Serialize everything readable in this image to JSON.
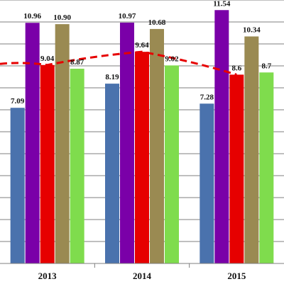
{
  "chart_data": {
    "type": "bar",
    "categories": [
      "2013",
      "2014",
      "2015"
    ],
    "series": [
      {
        "values": [
          7.09,
          8.19,
          7.28
        ],
        "color": "#4a72ad"
      },
      {
        "values": [
          10.96,
          10.97,
          11.54
        ],
        "color": "#7a00a8"
      },
      {
        "values": [
          9.04,
          9.64,
          8.6
        ],
        "color": "#e60000"
      },
      {
        "values": [
          10.9,
          10.68,
          10.34
        ],
        "color": "#9a8a52"
      },
      {
        "values": [
          8.87,
          9.02,
          8.7
        ],
        "color": "#7fdc4d"
      }
    ],
    "data_labels": [
      [
        "7.09",
        "8.19",
        "7.28"
      ],
      [
        "10.96",
        "10.97",
        "11.54"
      ],
      [
        "9.04",
        "9.64",
        "8.6"
      ],
      [
        "10.90",
        "10.68",
        "10.34"
      ],
      [
        "8.87",
        "9.02",
        "8.7"
      ]
    ],
    "trend_line": {
      "style": "dashed",
      "color": "#e60000",
      "values": [
        9.04,
        9.64,
        8.6
      ]
    },
    "ylim": [
      0,
      12
    ],
    "grid": true,
    "xlabel": "",
    "ylabel": ""
  }
}
